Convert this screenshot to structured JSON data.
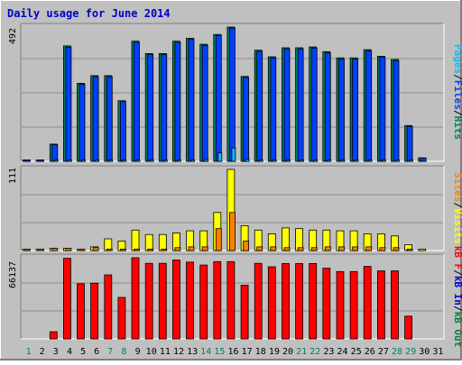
{
  "title": "Daily usage for June 2014",
  "colors": {
    "panel_bg": "#c0c0c0",
    "frame_light": "#ffffff",
    "frame_dark": "#808080",
    "title_text": "#0000cc",
    "grid": "#8c8c8c",
    "hits": "#00805c",
    "files": "#0040ff",
    "pages": "#00c0ff",
    "visits": "#ffff00",
    "sites": "#ff8000",
    "kb_in": "#0000cc",
    "kb_out": "#008040",
    "kb": "#ff0000",
    "weekend_day": "#00805c",
    "weekday_day": "#000000"
  },
  "chart_data": [
    {
      "type": "bar",
      "name": "hits-files-pages",
      "ymax_label": "492",
      "ylim": [
        0,
        492
      ],
      "legend": [
        "Pages",
        "/",
        "Files",
        "/",
        "Hits"
      ],
      "series": [
        {
          "name": "Hits",
          "values": [
            2,
            2,
            63,
            423,
            286,
            314,
            314,
            222,
            440,
            395,
            395,
            440,
            451,
            429,
            465,
            492,
            311,
            407,
            383,
            416,
            416,
            419,
            402,
            379,
            379,
            409,
            385,
            373,
            131,
            13,
            0
          ]
        },
        {
          "name": "Files",
          "values": [
            2,
            2,
            61,
            418,
            282,
            310,
            310,
            219,
            436,
            391,
            391,
            436,
            447,
            425,
            461,
            488,
            307,
            403,
            379,
            412,
            412,
            415,
            398,
            375,
            375,
            405,
            381,
            369,
            128,
            12,
            0
          ]
        },
        {
          "name": "Pages",
          "values": [
            0,
            0,
            3,
            3,
            2,
            5,
            2,
            3,
            2,
            2,
            3,
            3,
            5,
            7,
            31,
            49,
            8,
            3,
            3,
            5,
            3,
            3,
            3,
            5,
            3,
            3,
            2,
            3,
            2,
            0,
            0
          ]
        }
      ]
    },
    {
      "type": "bar",
      "name": "visits-sites",
      "ymax_label": "111",
      "ylim": [
        0,
        111
      ],
      "legend": [
        "Sites",
        "/",
        "Visits"
      ],
      "series": [
        {
          "name": "Visits",
          "values": [
            2,
            2,
            3,
            3,
            2,
            5,
            16,
            13,
            28,
            22,
            22,
            24,
            27,
            27,
            52,
            111,
            34,
            28,
            23,
            31,
            30,
            28,
            28,
            27,
            27,
            23,
            23,
            20,
            8,
            2,
            0
          ]
        },
        {
          "name": "Sites",
          "values": [
            2,
            2,
            3,
            3,
            2,
            4,
            2,
            2,
            2,
            2,
            2,
            4,
            5,
            5,
            30,
            52,
            13,
            5,
            5,
            4,
            4,
            4,
            5,
            5,
            5,
            5,
            4,
            4,
            2,
            0,
            0
          ]
        }
      ]
    },
    {
      "type": "bar",
      "name": "kbytes",
      "ymax_label": "66137",
      "ylim": [
        0,
        66137
      ],
      "legend": [
        "kB F",
        "/",
        "kB In",
        "/",
        "kB Out"
      ],
      "series": [
        {
          "name": "kB F",
          "values": [
            0,
            0,
            5800,
            65700,
            45000,
            45400,
            52200,
            33800,
            66137,
            61600,
            61600,
            64300,
            62600,
            60200,
            63000,
            63000,
            43800,
            61600,
            58800,
            61400,
            61400,
            61400,
            57600,
            54900,
            54900,
            59100,
            55500,
            55500,
            18500,
            0,
            0
          ]
        }
      ]
    }
  ],
  "days": [
    "1",
    "2",
    "3",
    "4",
    "5",
    "6",
    "7",
    "8",
    "9",
    "10",
    "11",
    "12",
    "13",
    "14",
    "15",
    "16",
    "17",
    "18",
    "19",
    "20",
    "21",
    "22",
    "23",
    "24",
    "25",
    "26",
    "27",
    "28",
    "29",
    "30",
    "31"
  ],
  "weekend_days": [
    1,
    7,
    8,
    14,
    15,
    21,
    22,
    28,
    29
  ]
}
